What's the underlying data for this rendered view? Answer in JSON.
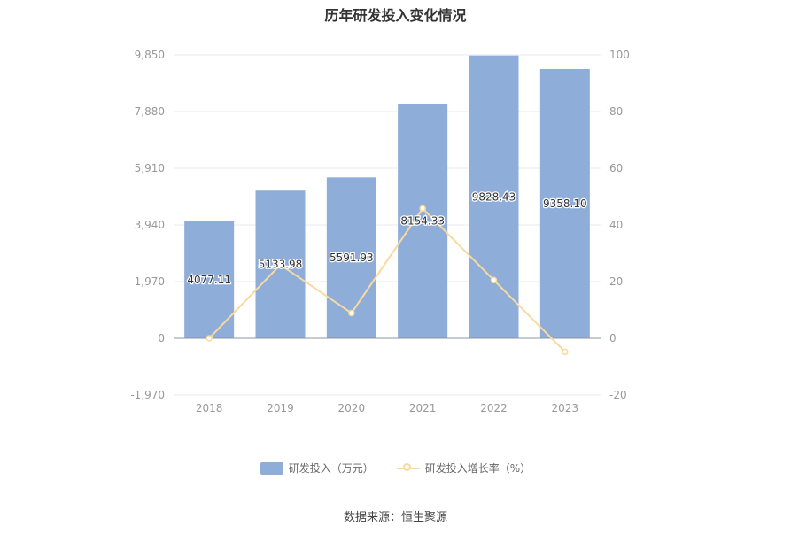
{
  "title": "历年研发投入变化情况",
  "source": "数据来源：恒生聚源",
  "colors": {
    "bar": "#8eadd8",
    "line": "#f8d9a0",
    "grid": "#e4e8f0",
    "axis_text": "#999999",
    "label": "#333333"
  },
  "legend": {
    "bar_label": "研发投入（万元）",
    "line_label": "研发投入增长率（%）"
  },
  "chart_data": {
    "type": "bar",
    "categories": [
      "2018",
      "2019",
      "2020",
      "2021",
      "2022",
      "2023"
    ],
    "series": [
      {
        "name": "研发投入（万元）",
        "type": "bar",
        "axis": "left",
        "values": [
          4077.11,
          5133.98,
          5591.93,
          8154.33,
          9828.43,
          9358.1
        ],
        "labels": [
          "4077.11",
          "5133.98",
          "5591.93",
          "8154.33",
          "9828.43",
          "9358.10"
        ]
      },
      {
        "name": "研发投入增长率（%）",
        "type": "line",
        "axis": "right",
        "values": [
          0,
          25.92,
          8.92,
          45.82,
          20.53,
          -4.79
        ]
      }
    ],
    "y_left": {
      "min": -1970,
      "max": 9850,
      "ticks": [
        -1970,
        0,
        1970,
        3940,
        5910,
        7880,
        9850
      ],
      "tick_labels": [
        "-1,970",
        "0",
        "1,970",
        "3,940",
        "5,910",
        "7,880",
        "9,850"
      ]
    },
    "y_right": {
      "min": -20,
      "max": 100,
      "ticks": [
        -20,
        0,
        20,
        40,
        60,
        80,
        100
      ],
      "tick_labels": [
        "-20",
        "0",
        "20",
        "40",
        "60",
        "80",
        "100"
      ]
    },
    "grid": true,
    "legend_position": "bottom"
  }
}
